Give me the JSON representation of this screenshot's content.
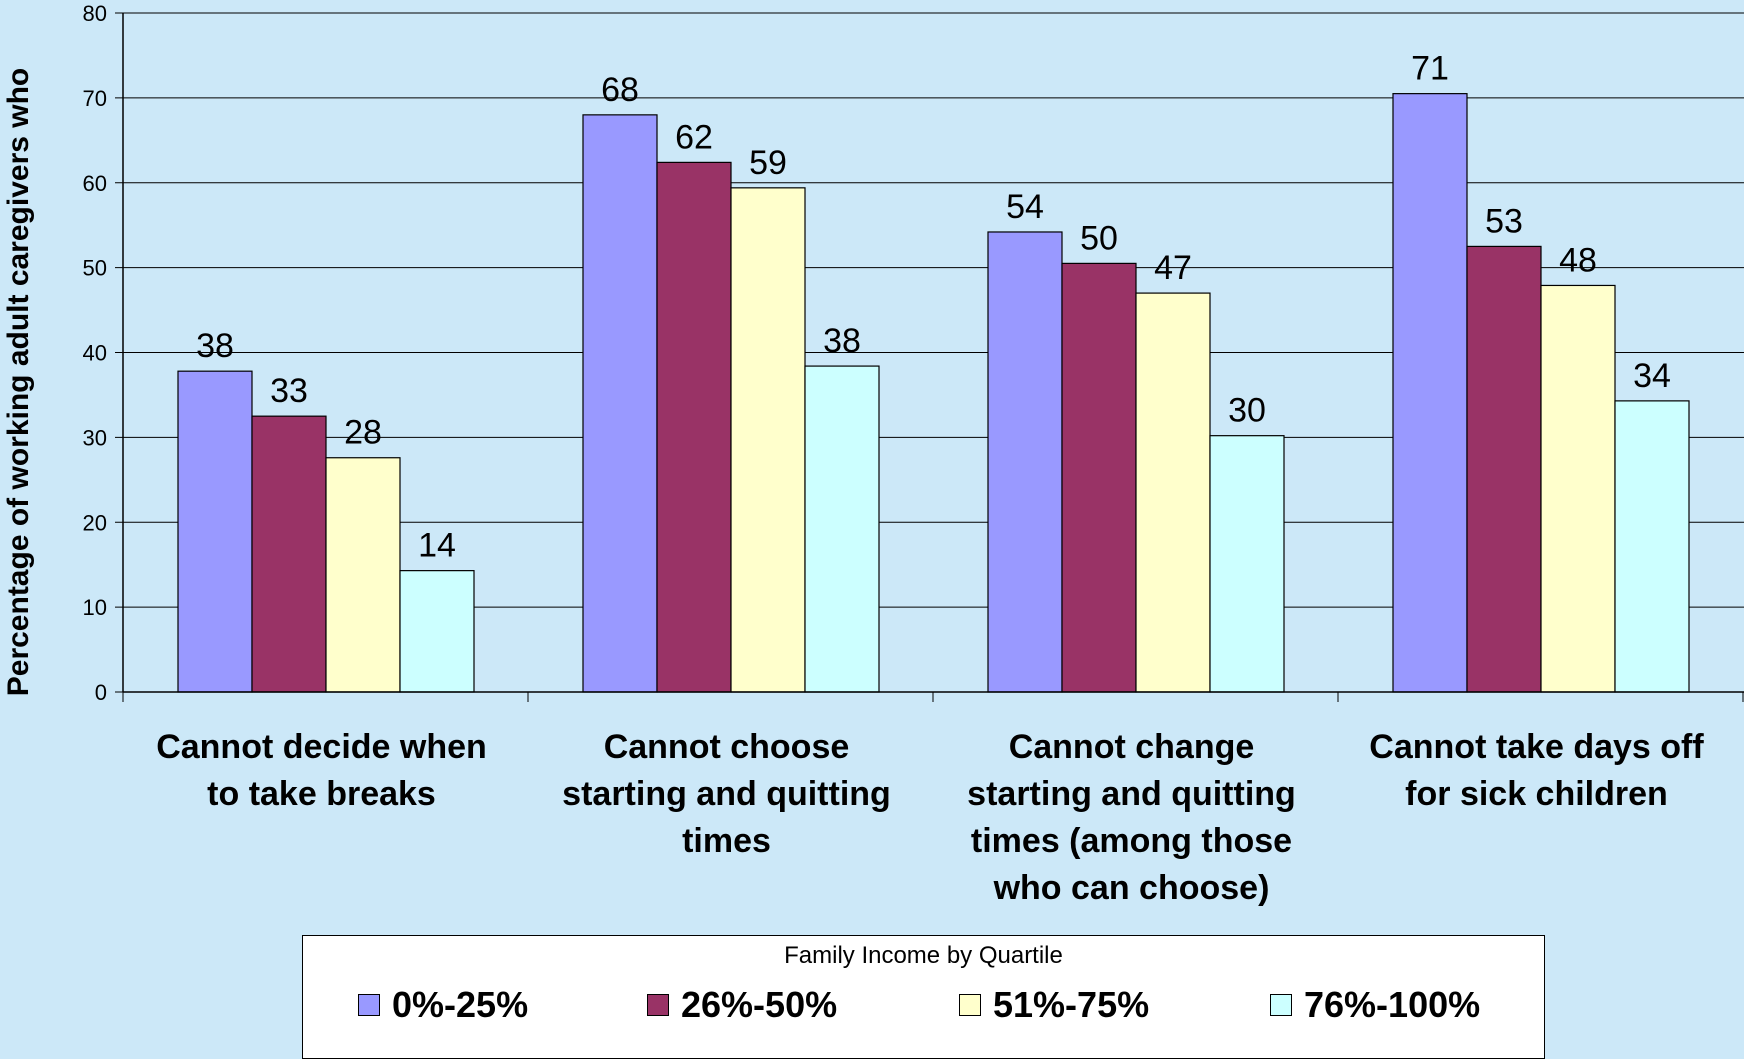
{
  "chart_data": {
    "type": "bar",
    "title": "",
    "ylabel": "Percentage of working adult caregivers who",
    "xlabel": "",
    "ylim": [
      0,
      80
    ],
    "yticks": [
      0,
      10,
      20,
      30,
      40,
      50,
      60,
      70,
      80
    ],
    "grid": true,
    "legend_position": "bottom",
    "legend_title": "Family Income by Quartile",
    "categories": [
      [
        "Cannot decide when",
        "to take breaks"
      ],
      [
        "Cannot choose",
        "starting and quitting",
        "times"
      ],
      [
        "Cannot change",
        "starting and quitting",
        "times (among those",
        "who can choose)"
      ],
      [
        "Cannot take days off",
        "for sick children"
      ]
    ],
    "series": [
      {
        "name": "0%-25%",
        "color": "#9999ff",
        "values": [
          37.8,
          68.0,
          54.2,
          70.5
        ],
        "labels": [
          "38",
          "68",
          "54",
          "71"
        ]
      },
      {
        "name": "26%-50%",
        "color": "#993366",
        "values": [
          32.5,
          62.4,
          50.5,
          52.5
        ],
        "labels": [
          "33",
          "62",
          "50",
          "53"
        ]
      },
      {
        "name": "51%-75%",
        "color": "#ffffcc",
        "values": [
          27.6,
          59.4,
          47.0,
          47.9
        ],
        "labels": [
          "28",
          "59",
          "47",
          "48"
        ]
      },
      {
        "name": "76%-100%",
        "color": "#ccffff",
        "values": [
          14.3,
          38.4,
          30.2,
          34.3
        ],
        "labels": [
          "14",
          "38",
          "30",
          "34"
        ]
      }
    ]
  }
}
